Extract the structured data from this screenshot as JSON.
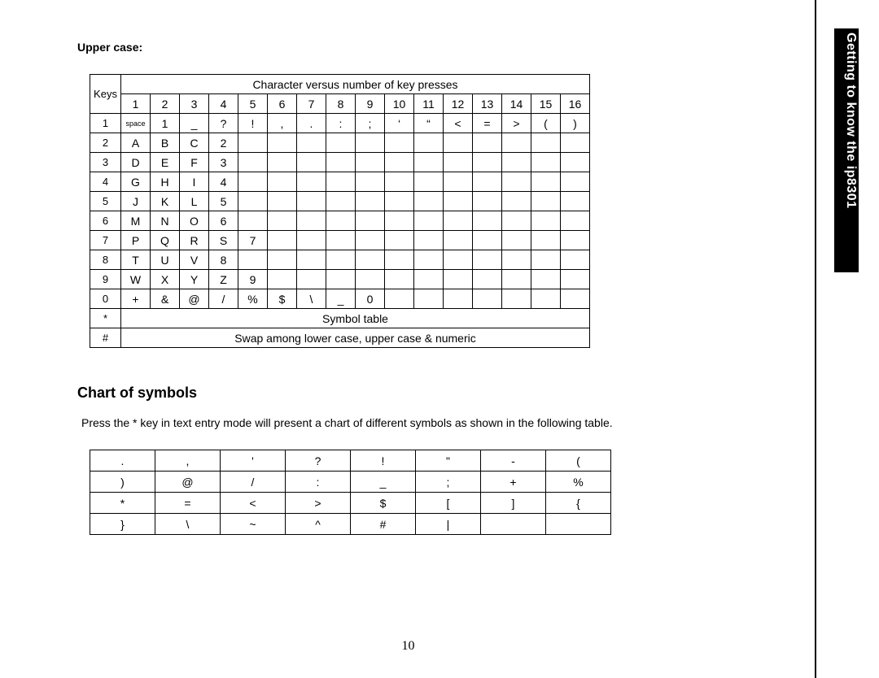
{
  "sideTab": "Getting to know the ip8301",
  "upperCaseLabel": "Upper case:",
  "keyTable": {
    "keysHeader": "Keys",
    "spanHeader": "Character versus number of key presses",
    "pressCols": [
      "1",
      "2",
      "3",
      "4",
      "5",
      "6",
      "7",
      "8",
      "9",
      "10",
      "11",
      "12",
      "13",
      "14",
      "15",
      "16"
    ],
    "rows": [
      {
        "key": "1",
        "cells": [
          "space",
          "1",
          "_",
          "?",
          "!",
          ",",
          ".",
          ":",
          ";",
          "‘",
          "“",
          "<",
          "=",
          ">",
          "(",
          ")"
        ]
      },
      {
        "key": "2",
        "cells": [
          "A",
          "B",
          "C",
          "2",
          "",
          "",
          "",
          "",
          "",
          "",
          "",
          "",
          "",
          "",
          "",
          ""
        ]
      },
      {
        "key": "3",
        "cells": [
          "D",
          "E",
          "F",
          "3",
          "",
          "",
          "",
          "",
          "",
          "",
          "",
          "",
          "",
          "",
          "",
          ""
        ]
      },
      {
        "key": "4",
        "cells": [
          "G",
          "H",
          "I",
          "4",
          "",
          "",
          "",
          "",
          "",
          "",
          "",
          "",
          "",
          "",
          "",
          ""
        ]
      },
      {
        "key": "5",
        "cells": [
          "J",
          "K",
          "L",
          "5",
          "",
          "",
          "",
          "",
          "",
          "",
          "",
          "",
          "",
          "",
          "",
          ""
        ]
      },
      {
        "key": "6",
        "cells": [
          "M",
          "N",
          "O",
          "6",
          "",
          "",
          "",
          "",
          "",
          "",
          "",
          "",
          "",
          "",
          "",
          ""
        ]
      },
      {
        "key": "7",
        "cells": [
          "P",
          "Q",
          "R",
          "S",
          "7",
          "",
          "",
          "",
          "",
          "",
          "",
          "",
          "",
          "",
          "",
          ""
        ]
      },
      {
        "key": "8",
        "cells": [
          "T",
          "U",
          "V",
          "8",
          "",
          "",
          "",
          "",
          "",
          "",
          "",
          "",
          "",
          "",
          "",
          ""
        ]
      },
      {
        "key": "9",
        "cells": [
          "W",
          "X",
          "Y",
          "Z",
          "9",
          "",
          "",
          "",
          "",
          "",
          "",
          "",
          "",
          "",
          "",
          ""
        ]
      },
      {
        "key": "0",
        "cells": [
          "+",
          "&",
          "@",
          "/",
          "%",
          "$",
          "\\",
          "_",
          "0",
          "",
          "",
          "",
          "",
          "",
          "",
          ""
        ]
      },
      {
        "key": "*",
        "span": "Symbol table"
      },
      {
        "key": "#",
        "span": "Swap among lower case, upper case & numeric"
      }
    ]
  },
  "chartHeading": "Chart of symbols",
  "chartDesc": "Press the * key in text entry mode will present a chart of different symbols as shown in the following table.",
  "symbolTable": [
    [
      ".",
      ",",
      "'",
      "?",
      "!",
      "\"",
      "-",
      "("
    ],
    [
      ")",
      "@",
      "/",
      ":",
      "_",
      ";",
      "+",
      "%"
    ],
    [
      "*",
      "=",
      "<",
      ">",
      "$",
      "[",
      "]",
      "{"
    ],
    [
      "}",
      "\\",
      "~",
      "^",
      "#",
      "|",
      "",
      ""
    ]
  ],
  "pageNumber": "10"
}
